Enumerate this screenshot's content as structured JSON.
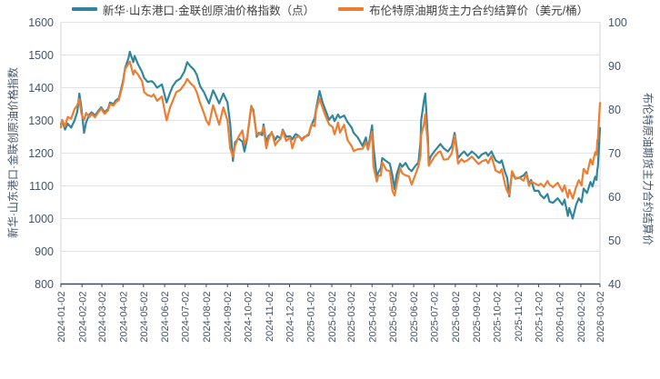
{
  "legend": {
    "items": [
      {
        "label": "新华·山东港口·金联创原油价格指数（点）",
        "color": "#31869b"
      },
      {
        "label": "布伦特原油期货主力合约结算价（美元/桶）",
        "color": "#ed7d31"
      }
    ]
  },
  "left_axis": {
    "title": "新华·山东港口·金联创原油价格指数",
    "min": 800,
    "max": 1600,
    "step": 100
  },
  "right_axis": {
    "title": "布伦特原油期货主力合约结算价",
    "min": 40,
    "max": 100,
    "step": 10
  },
  "chart_data": {
    "type": "line",
    "title": "",
    "grid": true,
    "legend_position": "top",
    "x_range": [
      "2024-01-02",
      "2026-03-02"
    ],
    "x_tick_labels": [
      "2024-01-02",
      "2024-02-02",
      "2024-03-02",
      "2024-04-02",
      "2024-05-02",
      "2024-06-02",
      "2024-07-02",
      "2024-08-02",
      "2024-09-02",
      "2024-10-02",
      "2024-11-02",
      "2024-12-02",
      "2025-01-02",
      "2025-02-02",
      "2025-03-02",
      "2025-04-02",
      "2025-05-02",
      "2025-06-02",
      "2025-07-02",
      "2025-08-02",
      "2025-09-02",
      "2025-10-02",
      "2025-11-02",
      "2025-12-02",
      "2026-01-02",
      "2026-02-02",
      "2026-03-02"
    ],
    "dates": [
      "2024-01-02",
      "2024-01-04",
      "2024-01-08",
      "2024-01-12",
      "2024-01-17",
      "2024-01-22",
      "2024-01-26",
      "2024-01-29",
      "2024-02-01",
      "2024-02-05",
      "2024-02-08",
      "2024-02-13",
      "2024-02-16",
      "2024-02-21",
      "2024-02-26",
      "2024-03-01",
      "2024-03-06",
      "2024-03-11",
      "2024-03-14",
      "2024-03-19",
      "2024-03-22",
      "2024-03-27",
      "2024-04-02",
      "2024-04-05",
      "2024-04-10",
      "2024-04-12",
      "2024-04-17",
      "2024-04-19",
      "2024-04-24",
      "2024-04-30",
      "2024-05-03",
      "2024-05-08",
      "2024-05-14",
      "2024-05-17",
      "2024-05-22",
      "2024-05-29",
      "2024-06-03",
      "2024-06-05",
      "2024-06-10",
      "2024-06-14",
      "2024-06-19",
      "2024-06-25",
      "2024-07-01",
      "2024-07-05",
      "2024-07-10",
      "2024-07-15",
      "2024-07-19",
      "2024-07-24",
      "2024-07-30",
      "2024-08-02",
      "2024-08-06",
      "2024-08-12",
      "2024-08-16",
      "2024-08-21",
      "2024-08-27",
      "2024-09-02",
      "2024-09-06",
      "2024-09-10",
      "2024-09-13",
      "2024-09-18",
      "2024-09-24",
      "2024-09-27",
      "2024-10-01",
      "2024-10-07",
      "2024-10-10",
      "2024-10-15",
      "2024-10-18",
      "2024-10-23",
      "2024-10-25",
      "2024-10-29",
      "2024-11-01",
      "2024-11-06",
      "2024-11-11",
      "2024-11-14",
      "2024-11-19",
      "2024-11-22",
      "2024-11-27",
      "2024-12-03",
      "2024-12-06",
      "2024-12-11",
      "2024-12-16",
      "2024-12-20",
      "2024-12-24",
      "2024-12-30",
      "2025-01-03",
      "2025-01-08",
      "2025-01-10",
      "2025-01-15",
      "2025-01-20",
      "2025-01-24",
      "2025-01-29",
      "2025-02-03",
      "2025-02-06",
      "2025-02-11",
      "2025-02-14",
      "2025-02-20",
      "2025-02-25",
      "2025-03-03",
      "2025-03-06",
      "2025-03-12",
      "2025-03-19",
      "2025-03-24",
      "2025-03-27",
      "2025-04-02",
      "2025-04-04",
      "2025-04-09",
      "2025-04-11",
      "2025-04-15",
      "2025-04-17",
      "2025-04-23",
      "2025-04-28",
      "2025-05-02",
      "2025-05-05",
      "2025-05-08",
      "2025-05-13",
      "2025-05-16",
      "2025-05-21",
      "2025-05-26",
      "2025-05-30",
      "2025-06-04",
      "2025-06-09",
      "2025-06-12",
      "2025-06-13",
      "2025-06-17",
      "2025-06-19",
      "2025-06-23",
      "2025-06-24",
      "2025-06-27",
      "2025-07-02",
      "2025-07-08",
      "2025-07-11",
      "2025-07-16",
      "2025-07-22",
      "2025-07-28",
      "2025-08-01",
      "2025-08-06",
      "2025-08-11",
      "2025-08-15",
      "2025-08-20",
      "2025-08-26",
      "2025-09-01",
      "2025-09-05",
      "2025-09-10",
      "2025-09-16",
      "2025-09-19",
      "2025-09-24",
      "2025-09-30",
      "2025-10-06",
      "2025-10-09",
      "2025-10-14",
      "2025-10-17",
      "2025-10-20",
      "2025-10-24",
      "2025-10-29",
      "2025-11-04",
      "2025-11-10",
      "2025-11-14",
      "2025-11-18",
      "2025-11-21",
      "2025-11-26",
      "2025-12-02",
      "2025-12-05",
      "2025-12-10",
      "2025-12-15",
      "2025-12-18",
      "2025-12-23",
      "2025-12-30",
      "2026-01-06",
      "2026-01-09",
      "2026-01-14",
      "2026-01-16",
      "2026-01-21",
      "2026-01-26",
      "2026-01-30",
      "2026-02-03",
      "2026-02-06",
      "2026-02-11",
      "2026-02-16",
      "2026-02-19",
      "2026-02-23",
      "2026-02-25",
      "2026-02-26",
      "2026-02-27",
      "2026-03-02"
    ],
    "series": [
      {
        "name": "新华·山东港口·金联创原油价格指数（点）",
        "axis": "left",
        "color": "#31869b",
        "values": [
          1288,
          1300,
          1272,
          1290,
          1278,
          1300,
          1326,
          1382,
          1340,
          1262,
          1295,
          1318,
          1325,
          1315,
          1330,
          1340,
          1325,
          1335,
          1355,
          1350,
          1360,
          1368,
          1420,
          1460,
          1490,
          1510,
          1478,
          1497,
          1472,
          1448,
          1430,
          1418,
          1420,
          1415,
          1400,
          1410,
          1370,
          1355,
          1385,
          1405,
          1420,
          1428,
          1450,
          1478,
          1465,
          1455,
          1440,
          1405,
          1385,
          1370,
          1352,
          1392,
          1375,
          1352,
          1382,
          1355,
          1290,
          1176,
          1232,
          1245,
          1235,
          1205,
          1245,
          1342,
          1332,
          1250,
          1262,
          1255,
          1288,
          1232,
          1252,
          1262,
          1240,
          1252,
          1245,
          1272,
          1250,
          1252,
          1242,
          1258,
          1252,
          1242,
          1250,
          1255,
          1285,
          1308,
          1335,
          1390,
          1352,
          1330,
          1302,
          1315,
          1298,
          1318,
          1308,
          1315,
          1295,
          1278,
          1262,
          1248,
          1222,
          1248,
          1212,
          1285,
          1220,
          1126,
          1140,
          1155,
          1185,
          1175,
          1168,
          1130,
          1090,
          1135,
          1168,
          1158,
          1170,
          1152,
          1145,
          1160,
          1172,
          1235,
          1300,
          1360,
          1382,
          1240,
          1172,
          1190,
          1205,
          1220,
          1228,
          1215,
          1205,
          1222,
          1262,
          1185,
          1198,
          1205,
          1192,
          1205,
          1195,
          1185,
          1196,
          1202,
          1192,
          1205,
          1178,
          1170,
          1178,
          1140,
          1125,
          1068,
          1140,
          1122,
          1125,
          1132,
          1142,
          1105,
          1118,
          1085,
          1085,
          1072,
          1062,
          1075,
          1052,
          1048,
          1062,
          1042,
          1058,
          1008,
          1032,
          1000,
          1042,
          1062,
          1050,
          1092,
          1078,
          1112,
          1098,
          1128,
          1118,
          1148,
          1160,
          1277
        ]
      },
      {
        "name": "布伦特原油期货主力合约结算价（美元/桶）",
        "axis": "right",
        "color": "#ed7d31",
        "values": [
          75.9,
          77.6,
          76.1,
          78.3,
          77.9,
          80.1,
          81.0,
          82.4,
          79.1,
          77.6,
          79.2,
          78.3,
          79.0,
          78.2,
          79.4,
          80.2,
          79.0,
          79.8,
          81.2,
          80.9,
          81.6,
          82.2,
          86.0,
          89.3,
          90.5,
          91.0,
          88.0,
          89.0,
          88.0,
          86.5,
          84.0,
          83.3,
          83.0,
          83.5,
          82.0,
          83.0,
          79.0,
          77.5,
          80.5,
          82.0,
          84.0,
          84.5,
          85.8,
          87.0,
          86.0,
          85.3,
          84.0,
          81.5,
          79.0,
          77.5,
          76.5,
          81.0,
          79.0,
          76.5,
          80.5,
          77.5,
          71.1,
          69.2,
          71.6,
          73.7,
          75.2,
          72.0,
          73.6,
          80.9,
          79.4,
          74.2,
          74.2,
          75.0,
          76.0,
          71.1,
          73.1,
          74.9,
          71.8,
          72.6,
          73.3,
          75.2,
          72.8,
          73.6,
          71.1,
          73.5,
          73.9,
          72.9,
          73.6,
          74.4,
          76.5,
          76.2,
          79.8,
          82.5,
          80.2,
          78.5,
          76.6,
          76.0,
          74.3,
          77.0,
          74.7,
          76.5,
          73.0,
          71.6,
          70.5,
          70.9,
          71.0,
          72.5,
          70.8,
          74.9,
          67.0,
          63.5,
          64.8,
          64.9,
          67.9,
          66.1,
          65.9,
          61.3,
          60.3,
          62.8,
          66.6,
          65.4,
          64.9,
          64.7,
          62.8,
          64.9,
          67.0,
          69.4,
          74.2,
          76.5,
          78.9,
          71.5,
          67.1,
          67.8,
          69.1,
          70.2,
          70.4,
          68.5,
          68.6,
          70.0,
          74.0,
          67.6,
          68.6,
          68.0,
          68.4,
          69.2,
          68.2,
          67.5,
          68.1,
          68.5,
          67.7,
          69.3,
          66.0,
          65.5,
          66.3,
          62.7,
          61.3,
          60.5,
          65.9,
          64.3,
          64.4,
          63.7,
          65.2,
          62.5,
          63.5,
          63.1,
          62.6,
          63.0,
          62.3,
          63.6,
          62.8,
          62.2,
          63.2,
          61.2,
          62.6,
          59.8,
          61.6,
          59.6,
          62.2,
          63.8,
          62.6,
          66.4,
          65.3,
          68.6,
          67.4,
          70.2,
          69.6,
          72.8,
          73.3,
          81.5
        ]
      }
    ]
  },
  "colors": {
    "grid": "#e2e4e8",
    "plot_border": "#d0d3d9",
    "x_axis_line": "#3f4a5c",
    "tick_text": "#44546a"
  }
}
